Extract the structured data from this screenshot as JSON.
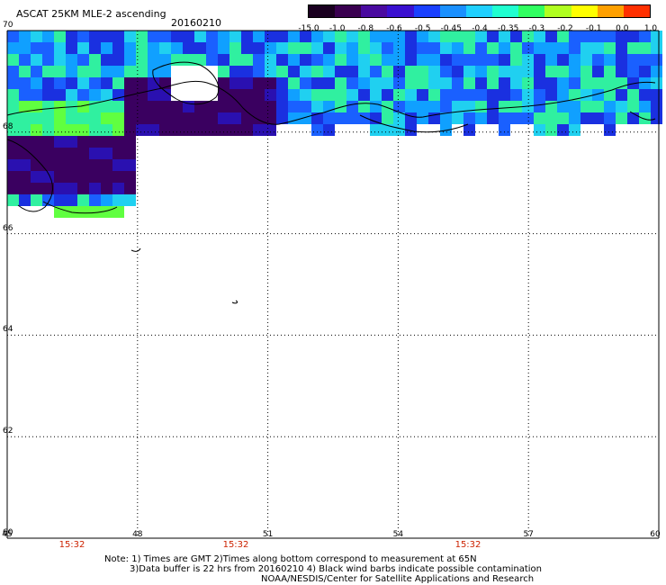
{
  "header": {
    "title": "ASCAT 25KM MLE-2 ascending",
    "date": "20160210"
  },
  "colorbar": {
    "labels": [
      "-15.0",
      "-1.0",
      "-0.8",
      "-0.6",
      "-0.5",
      "-0.45",
      "-0.4",
      "-0.35",
      "-0.3",
      "-0.2",
      "-0.1",
      "0.0",
      "1.0"
    ],
    "colors": [
      "#1a0020",
      "#3a0050",
      "#4a0aa0",
      "#3a10d0",
      "#1a40ff",
      "#1a90ff",
      "#20d0ff",
      "#20ffd0",
      "#30ff60",
      "#b0ff20",
      "#ffff00",
      "#ffa000",
      "#ff3000"
    ]
  },
  "map": {
    "lat_labels": [
      "70",
      "68",
      "66",
      "64",
      "62",
      "60"
    ],
    "lon_labels": [
      "45",
      "48",
      "51",
      "54",
      "57",
      "60"
    ],
    "lat_range": [
      60,
      70
    ],
    "lon_range": [
      45,
      60
    ],
    "grid": "dotted",
    "times": [
      "15:32",
      "15:32",
      "15:32"
    ]
  },
  "footer": {
    "note_line1": "Note: 1) Times are GMT 2)Times along bottom correspond to measurement at 65N",
    "note_line2": "3)Data buffer is 22 hrs from 20160210 4) Black wind barbs indicate possible contamination",
    "credit": "NOAA/NESDIS/Center for Satellite Applications and Research"
  }
}
